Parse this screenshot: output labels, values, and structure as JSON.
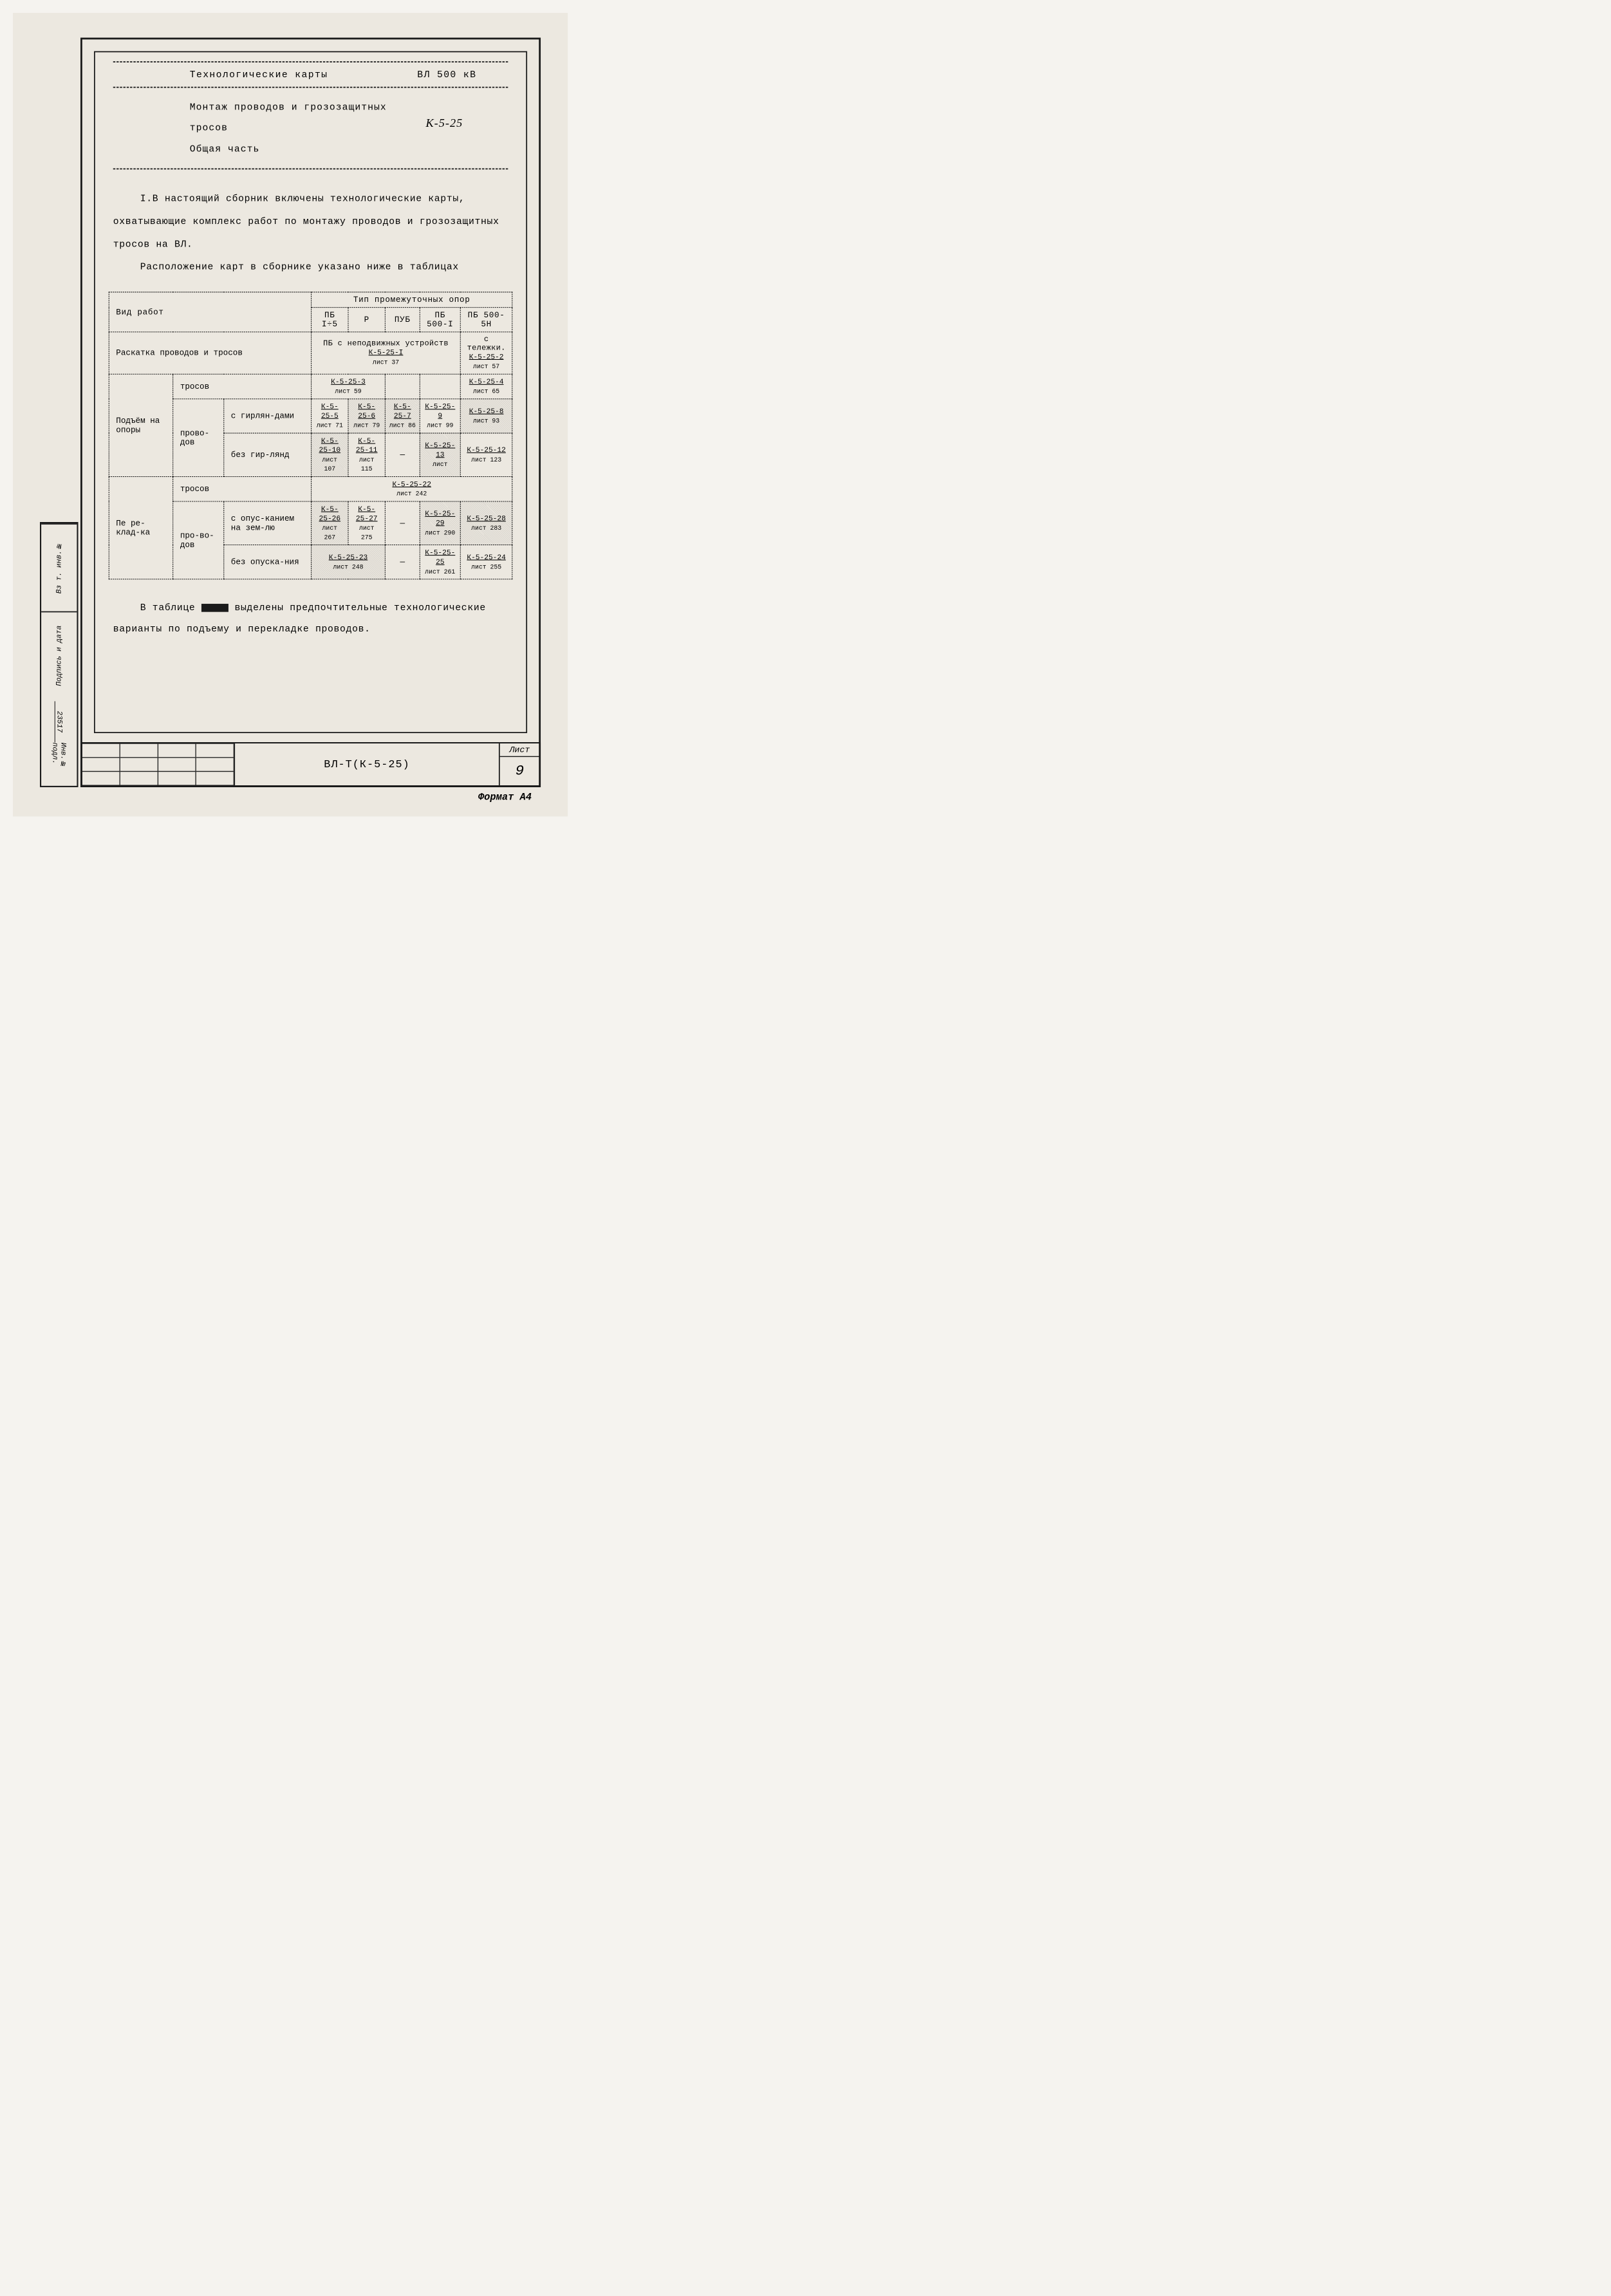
{
  "colors": {
    "paper": "#ece8e0",
    "ink": "#1a1a1a",
    "shade": "rgba(0,0,0,0.12)"
  },
  "header": {
    "title": "Технологические карты",
    "classification": "ВЛ 500 кВ",
    "subtitle1": "Монтаж проводов и грозозащитных",
    "subtitle2": "тросов",
    "subtitle3": "Общая часть",
    "doc_code": "К-5-25"
  },
  "body": {
    "para1": "I.В настоящий сборник включены технологические карты, охватывающие комплекс работ по монтажу проводов и грозозащитных тросов на ВЛ.",
    "para2": "Расположение карт в сборнике указано ниже в таблицах"
  },
  "table": {
    "col_group_header": "Тип промежуточных опор",
    "row_header_label": "Вид работ",
    "columns": [
      "ПБ I÷5",
      "Р",
      "ПУБ",
      "ПБ 500-I",
      "ПБ 500-5Н"
    ],
    "row1": {
      "label": "Раскатка проводов и тросов",
      "span_text": "ПБ с неподвижных устройств",
      "ref1": {
        "code": "К-5-25-I",
        "sheet": "лист 37"
      },
      "col5_text": "с тележки.",
      "ref2": {
        "code": "К-5-25-2",
        "sheet": "лист 57"
      }
    },
    "group_podem": {
      "label": "Подъём на опоры",
      "sub_trosov": {
        "label": "тросов",
        "ref_mid": {
          "code": "К-5-25-3",
          "sheet": "лист 59"
        },
        "ref5": {
          "code": "К-5-25-4",
          "sheet": "лист 65"
        }
      },
      "sub_provodov": "прово-дов",
      "sub_girland": {
        "label": "с гирлян-дами",
        "c1": {
          "code": "К-5-25-5",
          "sheet": "лист 71"
        },
        "c2": {
          "code": "К-5-25-6",
          "sheet": "лист 79"
        },
        "c3": {
          "code": "К-5-25-7",
          "sheet": "лист 86"
        },
        "c4": {
          "code": "К-5-25-9",
          "sheet": "лист 99"
        },
        "c5": {
          "code": "К-5-25-8",
          "sheet": "лист 93"
        }
      },
      "sub_bez_girland": {
        "label": "без гир-лянд",
        "c1": {
          "code": "К-5-25-10",
          "sheet": "лист 107"
        },
        "c2": {
          "code": "К-5-25-11",
          "sheet": "лист 115"
        },
        "c3": "—",
        "c4": {
          "code": "К-5-25-13",
          "sheet": "лист"
        },
        "c5": {
          "code": "К-5-25-12",
          "sheet": "лист 123"
        }
      }
    },
    "group_perekladka": {
      "label": "Пе ре-клад-ка",
      "sub_trosov": {
        "label": "тросов",
        "ref_mid": {
          "code": "К-5-25-22",
          "sheet": "лист 242"
        }
      },
      "sub_provodov": "про-во-дов",
      "sub_opusk": {
        "label": "с опус-канием на зем-лю",
        "c1": {
          "code": "К-5-25-26",
          "sheet": "лист 267"
        },
        "c2": {
          "code": "К-5-25-27",
          "sheet": "лист 275"
        },
        "c3": "—",
        "c4": {
          "code": "К-5-25-29",
          "sheet": "лист 290"
        },
        "c5": {
          "code": "К-5-25-28",
          "sheet": "лист 283"
        }
      },
      "sub_bez_opusk": {
        "label": "без опуска-ния",
        "c12": {
          "code": "К-5-25-23",
          "sheet": "лист 248"
        },
        "c3": "—",
        "c4": {
          "code": "К-5-25-25",
          "sheet": "лист 261"
        },
        "c5": {
          "code": "К-5-25-24",
          "sheet": "лист 255"
        }
      }
    }
  },
  "footer_note": {
    "pre": "В таблице",
    "post": "выделены предпочтительные технологические варианты по подъему и перекладке проводов."
  },
  "title_block": {
    "doc_id": "ВЛ-Т(К-5-25)",
    "sheet_label": "Лист",
    "sheet_num": "9"
  },
  "side_stamps": {
    "s1": "Вз т. инв.№",
    "s2": "Подпись и дата",
    "s3a": "Инв.№ подл.",
    "s3b": "23517"
  },
  "format_label": "Формат А4"
}
